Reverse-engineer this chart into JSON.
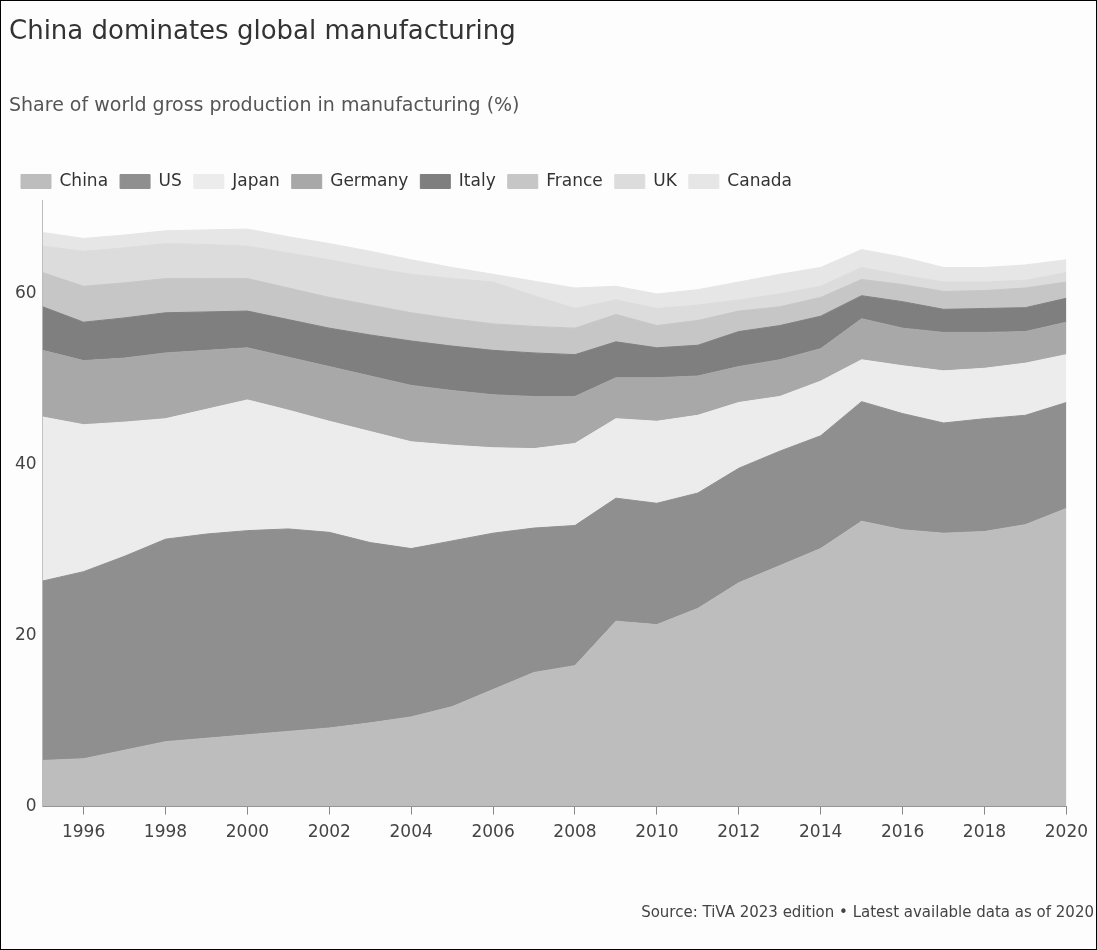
{
  "chart_data": {
    "type": "area",
    "title": "China dominates global manufacturing",
    "subtitle": "Share of world gross production in manufacturing (%)",
    "x": [
      1995,
      1996,
      1997,
      1998,
      1999,
      2000,
      2001,
      2002,
      2003,
      2004,
      2005,
      2006,
      2007,
      2008,
      2009,
      2010,
      2011,
      2012,
      2013,
      2014,
      2015,
      2016,
      2017,
      2018,
      2019,
      2020
    ],
    "stacked": true,
    "xlim": [
      1995,
      2020
    ],
    "xticks": [
      1996,
      1998,
      2000,
      2002,
      2004,
      2006,
      2008,
      2010,
      2012,
      2014,
      2016,
      2018,
      2020
    ],
    "ylim": [
      0,
      71
    ],
    "yticks": [
      0,
      20,
      40,
      60
    ],
    "grid": false,
    "legend": "top left",
    "series": [
      {
        "name": "China",
        "color": "#bdbdbd",
        "values": [
          5.4,
          5.6,
          6.6,
          7.6,
          8.0,
          8.4,
          8.8,
          9.2,
          9.8,
          10.5,
          11.7,
          13.7,
          15.7,
          16.5,
          21.7,
          21.3,
          23.2,
          26.2,
          28.2,
          30.2,
          33.4,
          32.4,
          32.0,
          32.2,
          33.0,
          34.9
        ]
      },
      {
        "name": "US",
        "color": "#8f8f8f",
        "values": [
          21.0,
          21.9,
          22.7,
          23.7,
          23.9,
          23.9,
          23.7,
          22.9,
          21.1,
          19.7,
          19.4,
          18.3,
          16.9,
          16.4,
          14.4,
          14.2,
          13.5,
          13.4,
          13.4,
          13.2,
          14.0,
          13.6,
          12.9,
          13.2,
          12.8,
          12.4
        ]
      },
      {
        "name": "Japan",
        "color": "#ececec",
        "values": [
          19.2,
          17.2,
          15.7,
          14.1,
          14.6,
          15.3,
          13.9,
          13.0,
          13.0,
          12.5,
          11.2,
          10.0,
          9.3,
          9.6,
          9.3,
          9.6,
          9.1,
          7.7,
          6.4,
          6.4,
          4.9,
          5.6,
          6.1,
          5.9,
          6.1,
          5.6
        ]
      },
      {
        "name": "Germany",
        "color": "#a8a8a8",
        "values": [
          7.8,
          7.5,
          7.5,
          7.7,
          6.9,
          6.1,
          6.2,
          6.4,
          6.5,
          6.6,
          6.4,
          6.2,
          6.1,
          5.5,
          4.8,
          5.1,
          4.6,
          4.2,
          4.3,
          3.8,
          4.8,
          4.4,
          4.5,
          4.2,
          3.7,
          3.8
        ]
      },
      {
        "name": "Italy",
        "color": "#7f7f7f",
        "values": [
          5.1,
          4.5,
          4.7,
          4.7,
          4.5,
          4.3,
          4.4,
          4.5,
          4.8,
          5.2,
          5.2,
          5.2,
          5.1,
          4.9,
          4.2,
          3.5,
          3.6,
          4.1,
          4.0,
          3.8,
          2.7,
          3.1,
          2.7,
          2.8,
          2.8,
          2.8
        ]
      },
      {
        "name": "France",
        "color": "#c6c6c6",
        "values": [
          4.0,
          4.2,
          4.1,
          4.0,
          3.9,
          3.8,
          3.7,
          3.6,
          3.5,
          3.3,
          3.2,
          3.1,
          3.1,
          3.1,
          3.2,
          2.6,
          2.9,
          2.4,
          2.2,
          2.2,
          1.9,
          2.0,
          2.1,
          2.1,
          2.3,
          1.9
        ]
      },
      {
        "name": "UK",
        "color": "#dcdcdc",
        "values": [
          3.1,
          4.1,
          4.1,
          4.1,
          4.0,
          3.8,
          4.1,
          4.4,
          4.4,
          4.5,
          4.7,
          4.9,
          3.6,
          2.3,
          1.7,
          2.0,
          1.8,
          1.3,
          1.5,
          1.3,
          1.4,
          1.1,
          1.1,
          1.0,
          0.9,
          1.1
        ]
      },
      {
        "name": "Canada",
        "color": "#e6e6e6",
        "values": [
          1.6,
          1.5,
          1.5,
          1.5,
          1.7,
          2.0,
          1.9,
          1.9,
          1.9,
          1.7,
          1.3,
          0.9,
          1.7,
          2.4,
          1.6,
          1.7,
          1.8,
          2.1,
          2.3,
          2.2,
          2.1,
          2.1,
          1.7,
          1.7,
          1.8,
          1.5
        ]
      }
    ],
    "annotations": [
      "Source: TiVA 2023 edition • Latest available data as of 2020"
    ]
  }
}
